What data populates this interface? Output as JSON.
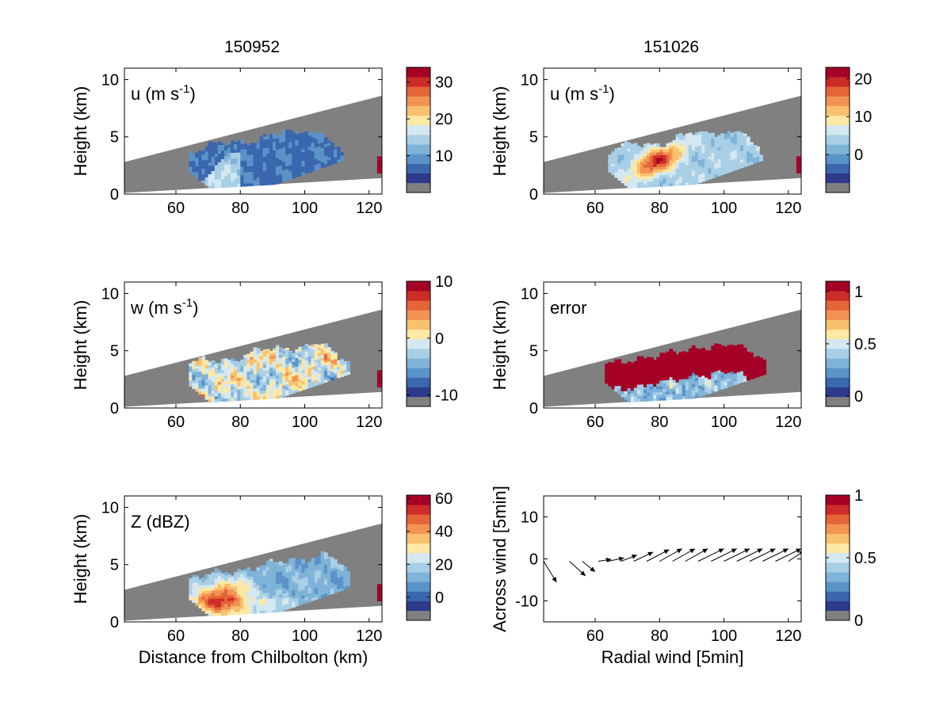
{
  "figure": {
    "column_titles": [
      "150952",
      "151026"
    ]
  },
  "colors": {
    "blocked": "#808080",
    "colormap": [
      "#2d3a8c",
      "#3a67ad",
      "#5a93c8",
      "#7fb3d8",
      "#a9cfe6",
      "#d4e8f1",
      "#fde8a4",
      "#f8c16d",
      "#f29353",
      "#e46538",
      "#cc2c27",
      "#a50026"
    ]
  },
  "chart_data": [
    {
      "id": "u1",
      "type": "heatmap",
      "column": 0,
      "row": 0,
      "label": "u (m s",
      "label_sup": "-1",
      "label_tail": ")",
      "ylabel": "Height (km)",
      "xlabel": "",
      "xlim": [
        44,
        124
      ],
      "ylim": [
        0,
        11
      ],
      "xticks": [
        60,
        80,
        100,
        120
      ],
      "yticks": [
        0,
        5,
        10
      ],
      "colorbar": {
        "range": [
          0,
          34
        ],
        "ticks": [
          10,
          20,
          30
        ]
      },
      "echo": {
        "x_range": [
          64,
          112
        ],
        "top_max": 5.5,
        "type": "u_weak",
        "strong_edge": true
      }
    },
    {
      "id": "u2",
      "type": "heatmap",
      "column": 1,
      "row": 0,
      "label": "u (m s",
      "label_sup": "-1",
      "label_tail": ")",
      "ylabel": "Height (km)",
      "xlabel": "",
      "xlim": [
        44,
        124
      ],
      "ylim": [
        0,
        11
      ],
      "xticks": [
        60,
        80,
        100,
        120
      ],
      "yticks": [
        0,
        5,
        10
      ],
      "colorbar": {
        "range": [
          -10,
          23
        ],
        "ticks": [
          0,
          10,
          20
        ]
      },
      "echo": {
        "x_range": [
          64,
          112
        ],
        "top_max": 5.5,
        "type": "u_mixed",
        "strong_edge": true
      }
    },
    {
      "id": "w1",
      "type": "heatmap",
      "column": 0,
      "row": 1,
      "label": "w (m s",
      "label_sup": "-1",
      "label_tail": ")",
      "ylabel": "Height (km)",
      "xlabel": "",
      "xlim": [
        44,
        124
      ],
      "ylim": [
        0,
        11
      ],
      "xticks": [
        60,
        80,
        100,
        120
      ],
      "yticks": [
        0,
        5,
        10
      ],
      "colorbar": {
        "range": [
          -12,
          10
        ],
        "ticks": [
          -10,
          0,
          10
        ]
      },
      "echo": {
        "x_range": [
          64,
          114
        ],
        "top_max": 5.6,
        "type": "w",
        "strong_edge": true
      }
    },
    {
      "id": "err",
      "type": "heatmap",
      "column": 1,
      "row": 1,
      "label": "error",
      "label_sup": "",
      "label_tail": "",
      "ylabel": "Height (km)",
      "xlabel": "",
      "xlim": [
        44,
        124
      ],
      "ylim": [
        0,
        11
      ],
      "xticks": [
        60,
        80,
        100,
        120
      ],
      "yticks": [
        0,
        5,
        10
      ],
      "colorbar": {
        "range": [
          -0.1,
          1.1
        ],
        "ticks": [
          0,
          0.5,
          1
        ]
      },
      "echo": {
        "x_range": [
          63,
          113
        ],
        "top_max": 5.6,
        "type": "error",
        "strong_edge": false
      }
    },
    {
      "id": "z",
      "type": "heatmap",
      "column": 0,
      "row": 2,
      "label": "Z (dBZ)",
      "label_sup": "",
      "label_tail": "",
      "ylabel": "Height (km)",
      "xlabel": "Distance from Chilbolton (km)",
      "xlim": [
        44,
        124
      ],
      "ylim": [
        0,
        11
      ],
      "xticks": [
        60,
        80,
        100,
        120
      ],
      "yticks": [
        0,
        5,
        10
      ],
      "colorbar": {
        "range": [
          -14,
          62
        ],
        "ticks": [
          0,
          20,
          40,
          60
        ]
      },
      "echo": {
        "x_range": [
          64,
          114
        ],
        "top_max": 6.5,
        "type": "z",
        "strong_edge": true
      }
    },
    {
      "id": "wind",
      "type": "quiver",
      "column": 1,
      "row": 2,
      "label": "",
      "label_sup": "",
      "label_tail": "",
      "ylabel": "Across wind [5min]",
      "xlabel": "Radial wind [5min]",
      "xlim": [
        44,
        124
      ],
      "ylim": [
        -15,
        15
      ],
      "xticks": [
        60,
        80,
        100,
        120
      ],
      "yticks": [
        -10,
        0,
        10
      ],
      "colorbar": {
        "range": [
          0,
          1
        ],
        "ticks": [
          0,
          0.5,
          1
        ]
      },
      "vectors": [
        {
          "x": 44,
          "u": 4,
          "v": -5
        },
        {
          "x": 52,
          "u": 5,
          "v": -3.5
        },
        {
          "x": 56,
          "u": 4,
          "v": -2.5
        },
        {
          "x": 61,
          "u": 4,
          "v": 0.5
        },
        {
          "x": 64,
          "u": 5,
          "v": 0.8
        },
        {
          "x": 68,
          "u": 5,
          "v": 1.5
        },
        {
          "x": 72,
          "u": 6,
          "v": 2.2
        },
        {
          "x": 76,
          "u": 7,
          "v": 2.8
        },
        {
          "x": 80,
          "u": 7,
          "v": 3
        },
        {
          "x": 84,
          "u": 7,
          "v": 3
        },
        {
          "x": 88,
          "u": 7,
          "v": 3
        },
        {
          "x": 92,
          "u": 8,
          "v": 3
        },
        {
          "x": 96,
          "u": 8,
          "v": 3
        },
        {
          "x": 100,
          "u": 8,
          "v": 3
        },
        {
          "x": 104,
          "u": 8,
          "v": 3
        },
        {
          "x": 108,
          "u": 8,
          "v": 3
        },
        {
          "x": 112,
          "u": 8,
          "v": 3
        },
        {
          "x": 116,
          "u": 8,
          "v": 3
        },
        {
          "x": 120,
          "u": 5,
          "v": 2.5
        }
      ]
    }
  ]
}
